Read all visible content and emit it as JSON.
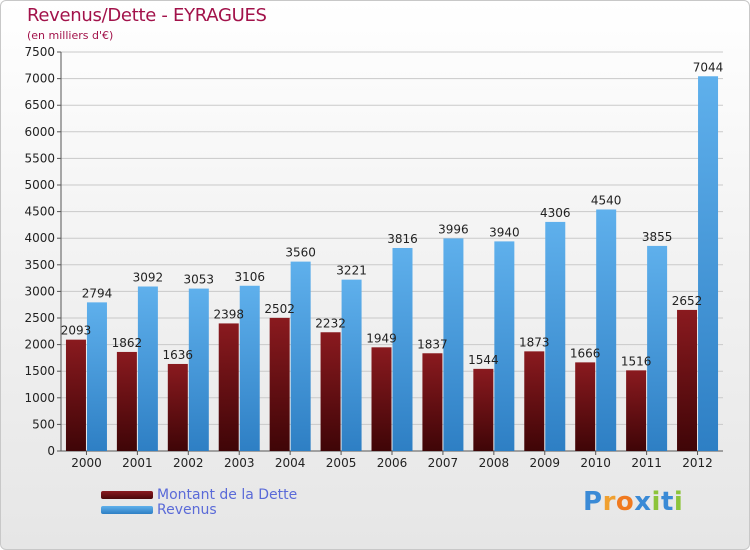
{
  "header": {
    "title": "Revenus/Dette - EYRAGUES",
    "subtitle": "(en milliers d'€)"
  },
  "legend": [
    {
      "label": "Montant de la Dette",
      "color": "#6b0f12"
    },
    {
      "label": "Revenus",
      "color": "#4aa0e0"
    }
  ],
  "logo": {
    "letters": [
      {
        "ch": "P",
        "color": "#3a8ad6"
      },
      {
        "ch": "r",
        "color": "#f0a030"
      },
      {
        "ch": "o",
        "color": "#f07a20"
      },
      {
        "ch": "x",
        "color": "#3a8ad6"
      },
      {
        "ch": "i",
        "color": "#8cc43a"
      },
      {
        "ch": "t",
        "color": "#3a8ad6"
      },
      {
        "ch": "i",
        "color": "#8cc43a"
      }
    ]
  },
  "chart_data": {
    "type": "bar",
    "categories": [
      "2000",
      "2001",
      "2002",
      "2003",
      "2004",
      "2005",
      "2006",
      "2007",
      "2008",
      "2009",
      "2010",
      "2011",
      "2012"
    ],
    "series": [
      {
        "name": "Montant de la Dette",
        "color": "#6b0f12",
        "values": [
          2093,
          1862,
          1636,
          2398,
          2502,
          2232,
          1949,
          1837,
          1544,
          1873,
          1666,
          1516,
          2652
        ],
        "labels": [
          "2093",
          "1862",
          "1636",
          "2398",
          "2502",
          "2232",
          "1949",
          "1837",
          "1544",
          "1873",
          "1666",
          "1516",
          "2652"
        ]
      },
      {
        "name": "Revenus",
        "color": "#4aa0e0",
        "values": [
          2794,
          3092,
          3053,
          3106,
          3560,
          3221,
          3816,
          3996,
          3940,
          4306,
          4540,
          3855,
          7044
        ],
        "labels": [
          "2794",
          "3092",
          "3053",
          "3106",
          "3560",
          "3221",
          "3816",
          "3996",
          "3940",
          "4306",
          "4540",
          "3855",
          "7044"
        ]
      }
    ],
    "title": "Revenus/Dette - EYRAGUES",
    "ylabel": "(en milliers d'€)",
    "ylim": [
      0,
      7500
    ],
    "yticks": [
      0,
      500,
      1000,
      1500,
      2000,
      2500,
      3000,
      3500,
      4000,
      4500,
      5000,
      5500,
      6000,
      6500,
      7000,
      7500
    ],
    "grid": true,
    "legend_position": "bottom-left"
  }
}
